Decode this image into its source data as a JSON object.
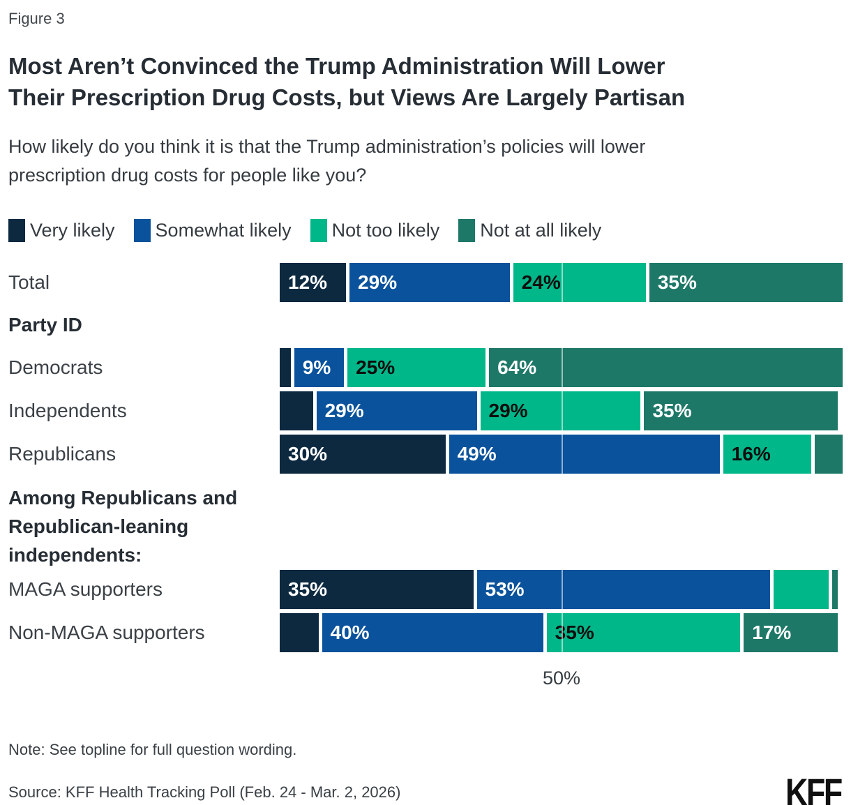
{
  "figure_label": "Figure 3",
  "title": {
    "line1": "Most Aren’t Convinced the Trump Administration Will Lower",
    "line2": "Their Prescription Drug Costs, but Views Are Largely Partisan"
  },
  "subtitle": {
    "line1": "How likely do you think it is that the Trump administration’s policies will lower",
    "line2": "prescription drug costs for people like you?"
  },
  "legend": [
    {
      "label": "Very likely",
      "color": "#0d2940"
    },
    {
      "label": "Somewhat likely",
      "color": "#0a529c"
    },
    {
      "label": "Not too likely",
      "color": "#00b789"
    },
    {
      "label": "Not at all likely",
      "color": "#1e7868"
    }
  ],
  "chart_data": {
    "type": "bar",
    "orientation": "horizontal-stacked",
    "categories": [
      "Very likely",
      "Somewhat likely",
      "Not too likely",
      "Not at all likely"
    ],
    "series_colors": [
      "#0d2940",
      "#0a529c",
      "#00b789",
      "#1e7868"
    ],
    "label_text_colors": [
      "#ffffff",
      "#ffffff",
      "#0e0e0e",
      "#ffffff"
    ],
    "x_axis": {
      "range": [
        0,
        100
      ],
      "ticks": [
        "50%"
      ],
      "gridline_at": 50
    },
    "axis_tick": "50%",
    "rows": [
      {
        "type": "bar",
        "label": "Total",
        "values": [
          12,
          29,
          24,
          35
        ],
        "segment_labels": [
          "12%",
          "29%",
          "24%",
          "35%"
        ]
      },
      {
        "type": "section",
        "label": "Party ID",
        "multi": false
      },
      {
        "type": "bar",
        "label": "Democrats",
        "values": [
          2,
          9,
          25,
          64
        ],
        "segment_labels": [
          "",
          "9%",
          "25%",
          "64%"
        ]
      },
      {
        "type": "bar",
        "label": "Independents",
        "values": [
          6,
          29,
          29,
          35
        ],
        "segment_labels": [
          "",
          "29%",
          "29%",
          "35%"
        ]
      },
      {
        "type": "bar",
        "label": "Republicans",
        "values": [
          30,
          49,
          16,
          5
        ],
        "segment_labels": [
          "30%",
          "49%",
          "16%",
          ""
        ]
      },
      {
        "type": "section",
        "label": "Among Republicans and Republican-leaning independents:",
        "multi": true
      },
      {
        "type": "bar",
        "label": "MAGA supporters",
        "values": [
          35,
          53,
          10,
          1
        ],
        "segment_labels": [
          "35%",
          "53%",
          "",
          ""
        ]
      },
      {
        "type": "bar",
        "label": "Non-MAGA supporters",
        "values": [
          7,
          40,
          35,
          17
        ],
        "segment_labels": [
          "",
          "40%",
          "35%",
          "17%"
        ]
      }
    ]
  },
  "note": "Note: See topline for full question wording.",
  "source": "Source: KFF Health Tracking Poll (Feb. 24 - Mar. 2, 2026)",
  "logo": "KFF"
}
